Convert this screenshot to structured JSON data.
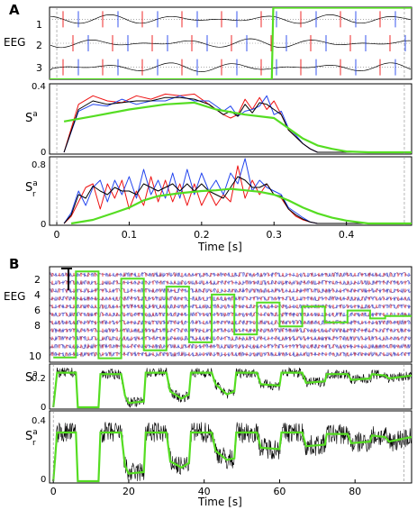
{
  "panel_a": {
    "letter": "A",
    "eeg_label": "EEG",
    "eeg_ticks": [
      "1",
      "2",
      "3"
    ],
    "sa_label": "S",
    "sa_sup": "a",
    "sr_label": "S",
    "sr_sup": "a",
    "sr_sub": "r",
    "x_ticks": [
      "0",
      "0.1",
      "0.2",
      "0.3",
      "0.4"
    ],
    "xlabel": "Time  [s]"
  },
  "panel_b": {
    "letter": "B",
    "eeg_label": "EEG",
    "eeg_ticks": [
      "2",
      "4",
      "6",
      "8",
      "10"
    ],
    "sa_label": "S",
    "sa_sup": "a",
    "sr_label": "S",
    "sr_sup": "a",
    "sr_sub": "r",
    "x_ticks": [
      "0",
      "20",
      "40",
      "60",
      "80"
    ],
    "xlabel": "Time  [s]"
  },
  "colors": {
    "green": "#55dd22",
    "red": "#ee1111",
    "blue": "#2244ee",
    "black": "#000000"
  },
  "chart_data": [
    {
      "id": "A-eeg",
      "type": "line",
      "xlim": [
        -0.01,
        0.49
      ],
      "channels": [
        1,
        2,
        3
      ],
      "ylim": [
        0.5,
        3.5
      ],
      "step": {
        "x": [
          -0.01,
          0.297,
          0.299,
          0.49
        ],
        "y": [
          3.5,
          3.5,
          0.52,
          0.52
        ]
      }
    },
    {
      "id": "A-Sa",
      "type": "line",
      "xlim": [
        -0.01,
        0.49
      ],
      "ylim": [
        0,
        0.4
      ],
      "y_ticks": [
        "0",
        "0.4"
      ],
      "series": [
        {
          "color": "red",
          "x": [
            0.01,
            0.03,
            0.05,
            0.07,
            0.09,
            0.11,
            0.13,
            0.15,
            0.17,
            0.19,
            0.21,
            0.23,
            0.24,
            0.25,
            0.26,
            0.27,
            0.28,
            0.29,
            0.3,
            0.31,
            0.32,
            0.33,
            0.34,
            0.35,
            0.36,
            0.38,
            0.4,
            0.49
          ],
          "y": [
            0.0,
            0.28,
            0.33,
            0.3,
            0.29,
            0.33,
            0.31,
            0.34,
            0.33,
            0.34,
            0.28,
            0.22,
            0.2,
            0.22,
            0.31,
            0.25,
            0.32,
            0.25,
            0.3,
            0.22,
            0.13,
            0.09,
            0.05,
            0.02,
            0.0,
            0.0,
            0.0,
            0.0
          ]
        },
        {
          "color": "blue",
          "x": [
            0.01,
            0.03,
            0.05,
            0.07,
            0.09,
            0.11,
            0.13,
            0.15,
            0.17,
            0.19,
            0.21,
            0.23,
            0.24,
            0.25,
            0.26,
            0.27,
            0.28,
            0.29,
            0.3,
            0.31,
            0.32,
            0.33,
            0.34,
            0.35,
            0.36,
            0.38,
            0.4,
            0.49
          ],
          "y": [
            0.0,
            0.24,
            0.28,
            0.27,
            0.31,
            0.28,
            0.3,
            0.3,
            0.33,
            0.3,
            0.3,
            0.24,
            0.27,
            0.21,
            0.24,
            0.25,
            0.27,
            0.33,
            0.22,
            0.24,
            0.14,
            0.1,
            0.05,
            0.02,
            0.0,
            0.0,
            0.0,
            0.0
          ]
        },
        {
          "color": "black",
          "x": [
            0.01,
            0.03,
            0.05,
            0.07,
            0.09,
            0.11,
            0.13,
            0.15,
            0.17,
            0.19,
            0.21,
            0.23,
            0.24,
            0.25,
            0.26,
            0.27,
            0.28,
            0.29,
            0.3,
            0.31,
            0.32,
            0.33,
            0.34,
            0.35,
            0.36,
            0.38,
            0.4,
            0.49
          ],
          "y": [
            0.0,
            0.25,
            0.3,
            0.28,
            0.29,
            0.3,
            0.3,
            0.32,
            0.32,
            0.31,
            0.28,
            0.22,
            0.24,
            0.21,
            0.28,
            0.23,
            0.29,
            0.28,
            0.25,
            0.22,
            0.13,
            0.09,
            0.05,
            0.02,
            0.0,
            0.0,
            0.0,
            0.0
          ]
        },
        {
          "color": "green",
          "x": [
            0.01,
            0.05,
            0.1,
            0.15,
            0.19,
            0.22,
            0.26,
            0.3,
            0.32,
            0.34,
            0.36,
            0.38,
            0.4,
            0.43,
            0.49
          ],
          "y": [
            0.18,
            0.21,
            0.25,
            0.28,
            0.29,
            0.25,
            0.22,
            0.2,
            0.14,
            0.08,
            0.04,
            0.02,
            0.005,
            0.0,
            0.0
          ]
        }
      ]
    },
    {
      "id": "A-Sra",
      "type": "line",
      "xlim": [
        -0.01,
        0.49
      ],
      "ylim": [
        0,
        0.9
      ],
      "y_ticks": [
        "0",
        "0.8"
      ],
      "series": [
        {
          "color": "red",
          "x": [
            0.01,
            0.02,
            0.03,
            0.04,
            0.05,
            0.06,
            0.07,
            0.08,
            0.09,
            0.1,
            0.11,
            0.12,
            0.13,
            0.14,
            0.15,
            0.16,
            0.17,
            0.18,
            0.19,
            0.2,
            0.21,
            0.22,
            0.23,
            0.24,
            0.25,
            0.26,
            0.27,
            0.28,
            0.29,
            0.3,
            0.31,
            0.32,
            0.33,
            0.34,
            0.35,
            0.36,
            0.49
          ],
          "y": [
            0.0,
            0.1,
            0.3,
            0.5,
            0.55,
            0.2,
            0.55,
            0.35,
            0.6,
            0.2,
            0.45,
            0.25,
            0.65,
            0.3,
            0.6,
            0.3,
            0.55,
            0.25,
            0.55,
            0.25,
            0.45,
            0.25,
            0.4,
            0.3,
            0.8,
            0.35,
            0.6,
            0.4,
            0.55,
            0.4,
            0.35,
            0.2,
            0.1,
            0.05,
            0.02,
            0.0,
            0.0
          ]
        },
        {
          "color": "blue",
          "x": [
            0.01,
            0.02,
            0.03,
            0.04,
            0.05,
            0.06,
            0.07,
            0.08,
            0.09,
            0.1,
            0.11,
            0.12,
            0.13,
            0.14,
            0.15,
            0.16,
            0.17,
            0.18,
            0.19,
            0.2,
            0.21,
            0.22,
            0.23,
            0.24,
            0.25,
            0.26,
            0.27,
            0.28,
            0.29,
            0.3,
            0.31,
            0.32,
            0.33,
            0.34,
            0.35,
            0.36,
            0.49
          ],
          "y": [
            0.0,
            0.15,
            0.45,
            0.25,
            0.5,
            0.6,
            0.3,
            0.6,
            0.4,
            0.65,
            0.35,
            0.75,
            0.4,
            0.6,
            0.35,
            0.7,
            0.35,
            0.75,
            0.4,
            0.7,
            0.45,
            0.6,
            0.4,
            0.7,
            0.55,
            0.9,
            0.45,
            0.6,
            0.5,
            0.45,
            0.4,
            0.22,
            0.15,
            0.08,
            0.02,
            0.0,
            0.0
          ]
        },
        {
          "color": "black",
          "x": [
            0.01,
            0.02,
            0.03,
            0.04,
            0.05,
            0.06,
            0.07,
            0.08,
            0.09,
            0.1,
            0.11,
            0.12,
            0.13,
            0.14,
            0.15,
            0.16,
            0.17,
            0.18,
            0.19,
            0.2,
            0.21,
            0.22,
            0.23,
            0.24,
            0.25,
            0.26,
            0.27,
            0.28,
            0.29,
            0.3,
            0.31,
            0.32,
            0.33,
            0.34,
            0.35,
            0.36,
            0.49
          ],
          "y": [
            0.0,
            0.12,
            0.4,
            0.35,
            0.52,
            0.45,
            0.4,
            0.5,
            0.45,
            0.45,
            0.4,
            0.55,
            0.5,
            0.45,
            0.5,
            0.55,
            0.45,
            0.55,
            0.45,
            0.55,
            0.45,
            0.4,
            0.35,
            0.5,
            0.65,
            0.6,
            0.5,
            0.5,
            0.55,
            0.4,
            0.38,
            0.2,
            0.12,
            0.06,
            0.02,
            0.0,
            0.0
          ]
        },
        {
          "color": "green",
          "x": [
            0.02,
            0.05,
            0.08,
            0.1,
            0.12,
            0.14,
            0.17,
            0.2,
            0.22,
            0.24,
            0.26,
            0.28,
            0.3,
            0.32,
            0.34,
            0.36,
            0.38,
            0.4,
            0.43,
            0.49
          ],
          "y": [
            0.0,
            0.05,
            0.15,
            0.22,
            0.32,
            0.38,
            0.42,
            0.45,
            0.46,
            0.48,
            0.46,
            0.44,
            0.4,
            0.32,
            0.22,
            0.14,
            0.08,
            0.04,
            0.0,
            0.0
          ]
        }
      ]
    },
    {
      "id": "B-eeg",
      "type": "line",
      "xlim": [
        -1,
        95
      ],
      "channels": [
        1,
        2,
        3,
        4,
        5,
        6,
        7,
        8,
        9,
        10,
        11
      ],
      "ylim": [
        0,
        12
      ],
      "step": {
        "x": [
          0,
          6,
          6,
          12,
          12,
          18,
          18,
          24,
          24,
          30,
          30,
          36,
          36,
          42,
          42,
          48,
          48,
          54,
          54,
          60,
          60,
          66,
          66,
          72,
          72,
          78,
          78,
          84,
          84,
          88,
          88,
          95
        ],
        "y": [
          11.4,
          11.4,
          0.6,
          0.6,
          11.5,
          11.5,
          1.5,
          1.5,
          10.5,
          10.5,
          2.5,
          2.5,
          9.5,
          9.5,
          3.5,
          3.5,
          8.5,
          8.5,
          4.5,
          4.5,
          7.5,
          7.5,
          5.0,
          5.0,
          7.0,
          7.0,
          5.5,
          5.5,
          6.5,
          6.5,
          6.2,
          6.2
        ]
      }
    },
    {
      "id": "B-Sa",
      "type": "line",
      "xlim": [
        -1,
        95
      ],
      "ylim": [
        0,
        0.3
      ],
      "y_ticks": [
        "0",
        "0.2"
      ],
      "series": [
        {
          "color": "green",
          "x": [
            0,
            1,
            6,
            6.5,
            12,
            12.5,
            18,
            19,
            20,
            24,
            24.5,
            30,
            31,
            34,
            36,
            36.5,
            42,
            43,
            46,
            48,
            48.5,
            54,
            55,
            60,
            60.5,
            66,
            67,
            72,
            72.5,
            78,
            79,
            84,
            84.5,
            88,
            89,
            95
          ],
          "y": [
            0.0,
            0.24,
            0.24,
            0.0,
            0.0,
            0.23,
            0.23,
            0.08,
            0.03,
            0.04,
            0.24,
            0.24,
            0.11,
            0.06,
            0.09,
            0.24,
            0.24,
            0.16,
            0.09,
            0.11,
            0.24,
            0.24,
            0.16,
            0.15,
            0.24,
            0.24,
            0.17,
            0.18,
            0.23,
            0.23,
            0.19,
            0.2,
            0.23,
            0.22,
            0.2,
            0.22
          ]
        }
      ]
    },
    {
      "id": "B-Sra",
      "type": "line",
      "xlim": [
        -1,
        95
      ],
      "ylim": [
        0,
        0.45
      ],
      "y_ticks": [
        "0",
        "0.4"
      ],
      "series": [
        {
          "color": "green",
          "x": [
            0,
            1,
            6,
            6.5,
            12,
            12.5,
            18,
            19,
            20,
            24,
            24.5,
            30,
            31,
            34,
            36,
            36.5,
            42,
            43,
            46,
            48,
            48.5,
            54,
            55,
            60,
            60.5,
            66,
            67,
            72,
            72.5,
            78,
            79,
            84,
            84.5,
            88,
            89,
            95
          ],
          "y": [
            0.0,
            0.32,
            0.32,
            0.0,
            0.0,
            0.32,
            0.32,
            0.1,
            0.05,
            0.06,
            0.32,
            0.32,
            0.13,
            0.09,
            0.12,
            0.32,
            0.32,
            0.2,
            0.14,
            0.15,
            0.32,
            0.32,
            0.22,
            0.21,
            0.32,
            0.32,
            0.23,
            0.24,
            0.31,
            0.31,
            0.25,
            0.26,
            0.3,
            0.29,
            0.26,
            0.29
          ]
        }
      ]
    }
  ]
}
